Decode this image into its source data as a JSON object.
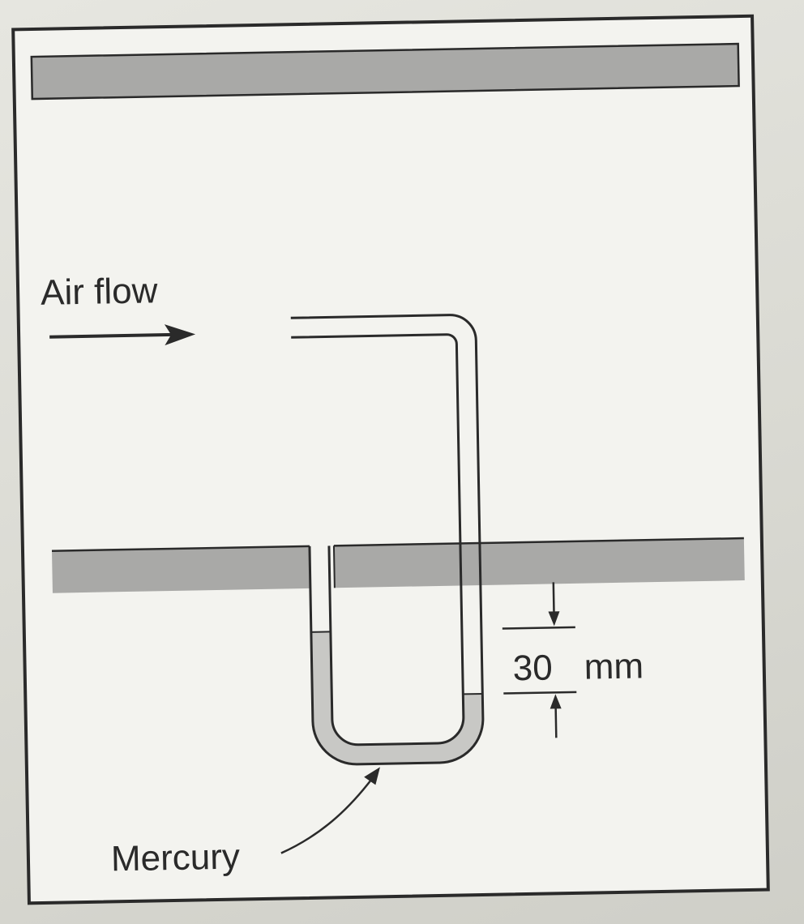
{
  "diagram": {
    "air_flow_label": "Air flow",
    "mercury_label": "Mercury",
    "height_value": "30",
    "height_unit": "mm",
    "colors": {
      "wall": "#a9a9a7",
      "mercury": "#c8c8c5",
      "line": "#2a2a2a",
      "panel": "#f3f3ef",
      "tube_interior": "#f7f7f3"
    }
  }
}
